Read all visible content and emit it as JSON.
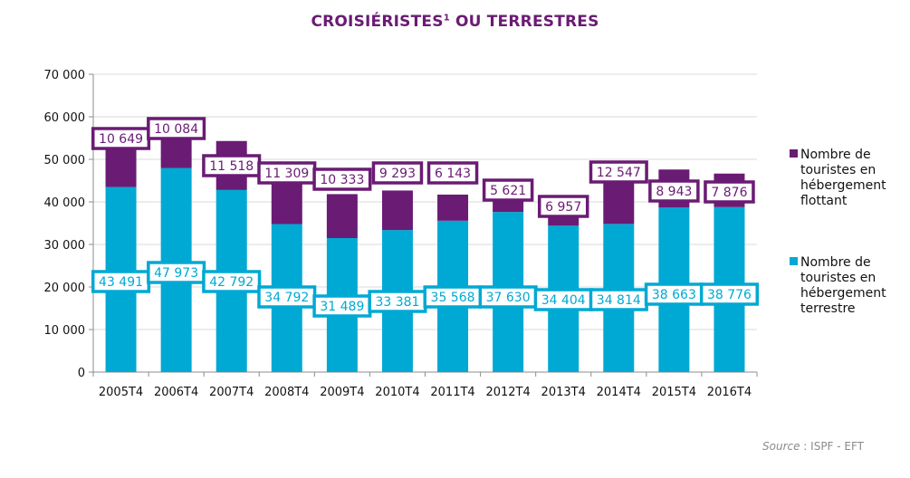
{
  "chart_data": {
    "type": "bar",
    "stacked": true,
    "title": "CROISIÉRISTES",
    "title_superscript": "1",
    "title_suffix": " OU TERRESTRES",
    "xlabel": "",
    "ylabel": "",
    "ylim": [
      0,
      70000
    ],
    "yticks": [
      0,
      10000,
      20000,
      30000,
      40000,
      50000,
      60000,
      70000
    ],
    "ytick_labels": [
      "0",
      "10 000",
      "20 000",
      "30 000",
      "40 000",
      "50 000",
      "60 000",
      "70 000"
    ],
    "grid": true,
    "legend_position": "right",
    "categories": [
      "2005T4",
      "2006T4",
      "2007T4",
      "2008T4",
      "2009T4",
      "2010T4",
      "2011T4",
      "2012T4",
      "2013T4",
      "2014T4",
      "2015T4",
      "2016T4"
    ],
    "series": [
      {
        "name": "Nombre de touristes en hébergement terrestre",
        "color": "#00a9d4",
        "values": [
          43491,
          47973,
          42792,
          34792,
          31489,
          33381,
          35568,
          37630,
          34404,
          34814,
          38663,
          38776
        ],
        "labels": [
          "43 491",
          "47 973",
          "42 792",
          "34 792",
          "31 489",
          "33 381",
          "35 568",
          "37 630",
          "34 404",
          "34 814",
          "38 663",
          "38 776"
        ]
      },
      {
        "name": "Nombre de touristes en hébergement flottant",
        "color": "#6a1b74",
        "values": [
          10649,
          10084,
          11518,
          11309,
          10333,
          9293,
          6143,
          5621,
          6957,
          12547,
          8943,
          7876
        ],
        "labels": [
          "10 649",
          "10 084",
          "11 518",
          "11 309",
          "10 333",
          "9 293",
          "6 143",
          "5 621",
          "6 957",
          "12 547",
          "8 943",
          "7 876"
        ]
      }
    ]
  },
  "legend": {
    "items": [
      {
        "label_lines": [
          "Nombre de",
          "touristes en",
          "hébergement",
          "flottant"
        ],
        "color": "#6a1b74"
      },
      {
        "label_lines": [
          "Nombre de",
          "touristes en",
          "hébergement",
          "terrestre"
        ],
        "color": "#00a9d4"
      }
    ]
  },
  "source": {
    "prefix": "Source",
    "text": " : ISPF - EFT"
  }
}
